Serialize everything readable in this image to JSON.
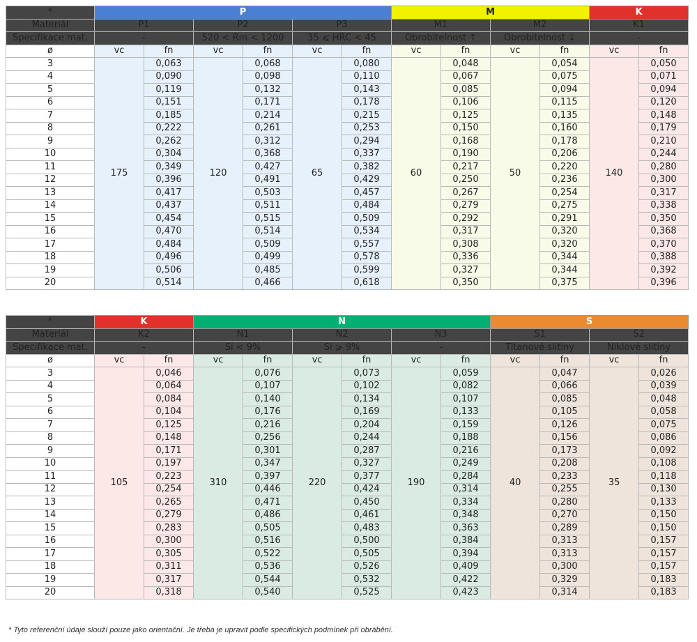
{
  "labels": {
    "star": "*",
    "material": "Materiál",
    "spec": "Specifikace mat.",
    "diameter": "ø",
    "vc": "vc",
    "fn": "fn"
  },
  "diameters": [
    "3",
    "4",
    "5",
    "6",
    "7",
    "8",
    "9",
    "10",
    "11",
    "12",
    "13",
    "14",
    "15",
    "16",
    "17",
    "18",
    "19",
    "20"
  ],
  "tables": [
    {
      "groups": [
        {
          "name": "P",
          "span": 3,
          "color": "#4a7fd4",
          "text_color": "#ffffff",
          "bg": "#e7f1fc"
        },
        {
          "name": "M",
          "span": 2,
          "color": "#f2f200",
          "text_color": "#222222",
          "bg": "#f8fbe7"
        },
        {
          "name": "K",
          "span": 1,
          "color": "#e2302d",
          "text_color": "#ffffff",
          "bg": "#fce8e7"
        }
      ],
      "materials": [
        {
          "name": "P1",
          "spec": "-",
          "vc": "175",
          "fn": [
            "0,063",
            "0,090",
            "0,119",
            "0,151",
            "0,185",
            "0,222",
            "0,262",
            "0,304",
            "0,349",
            "0,396",
            "0,417",
            "0,437",
            "0,454",
            "0,470",
            "0,484",
            "0,496",
            "0,506",
            "0,514"
          ]
        },
        {
          "name": "P2",
          "spec": "520 < Rm < 1200",
          "vc": "120",
          "fn": [
            "0,068",
            "0,098",
            "0,132",
            "0,171",
            "0,214",
            "0,261",
            "0,312",
            "0,368",
            "0,427",
            "0,491",
            "0,503",
            "0,511",
            "0,515",
            "0,514",
            "0,509",
            "0,499",
            "0,485",
            "0,466"
          ]
        },
        {
          "name": "P3",
          "spec": "35 ⩽ HRC < 45",
          "vc": "65",
          "fn": [
            "0,080",
            "0,110",
            "0,143",
            "0,178",
            "0,215",
            "0,253",
            "0,294",
            "0,337",
            "0,382",
            "0,429",
            "0,457",
            "0,484",
            "0,509",
            "0,534",
            "0,557",
            "0,578",
            "0,599",
            "0,618"
          ]
        },
        {
          "name": "M1",
          "spec": "Obrobitelnost ↑",
          "vc": "60",
          "fn": [
            "0,048",
            "0,067",
            "0,085",
            "0,106",
            "0,125",
            "0,150",
            "0,168",
            "0,190",
            "0,217",
            "0,250",
            "0,267",
            "0,279",
            "0,292",
            "0,317",
            "0,308",
            "0,336",
            "0,327",
            "0,350"
          ]
        },
        {
          "name": "M2",
          "spec": "Obrobitelnost ↓",
          "vc": "50",
          "fn": [
            "0,054",
            "0,075",
            "0,094",
            "0,115",
            "0,135",
            "0,160",
            "0,178",
            "0,206",
            "0,220",
            "0,236",
            "0,254",
            "0,275",
            "0,291",
            "0,320",
            "0,320",
            "0,344",
            "0,344",
            "0,375"
          ]
        },
        {
          "name": "K1",
          "spec": "-",
          "vc": "140",
          "fn": [
            "0,050",
            "0,071",
            "0,094",
            "0,120",
            "0,148",
            "0,179",
            "0,210",
            "0,244",
            "0,280",
            "0,300",
            "0,317",
            "0,338",
            "0,350",
            "0,368",
            "0,370",
            "0,388",
            "0,392",
            "0,396"
          ]
        }
      ]
    },
    {
      "groups": [
        {
          "name": "K",
          "span": 1,
          "color": "#e2302d",
          "text_color": "#ffffff",
          "bg": "#fce8e7"
        },
        {
          "name": "N",
          "span": 3,
          "color": "#00b073",
          "text_color": "#ffffff",
          "bg": "#d9ebe2"
        },
        {
          "name": "S",
          "span": 2,
          "color": "#ea8a32",
          "text_color": "#ffffff",
          "bg": "#eee4db"
        }
      ],
      "materials": [
        {
          "name": "K2",
          "spec": "-",
          "vc": "105",
          "fn": [
            "0,046",
            "0,064",
            "0,084",
            "0,104",
            "0,125",
            "0,148",
            "0,171",
            "0,197",
            "0,223",
            "0,254",
            "0,265",
            "0,279",
            "0,283",
            "0,300",
            "0,305",
            "0,311",
            "0,317",
            "0,318"
          ]
        },
        {
          "name": "N1",
          "spec": "Si < 9%",
          "vc": "310",
          "fn": [
            "0,076",
            "0,107",
            "0,140",
            "0,176",
            "0,216",
            "0,256",
            "0,301",
            "0,347",
            "0,397",
            "0,446",
            "0,471",
            "0,486",
            "0,505",
            "0,516",
            "0,522",
            "0,536",
            "0,544",
            "0,540"
          ]
        },
        {
          "name": "N2",
          "spec": "Si ⩾ 9%",
          "vc": "220",
          "fn": [
            "0,073",
            "0,102",
            "0,134",
            "0,169",
            "0,204",
            "0,244",
            "0,287",
            "0,327",
            "0,377",
            "0,424",
            "0,450",
            "0,461",
            "0,483",
            "0,500",
            "0,505",
            "0,526",
            "0,532",
            "0,525"
          ]
        },
        {
          "name": "N3",
          "spec": "-",
          "vc": "190",
          "fn": [
            "0,059",
            "0,082",
            "0,107",
            "0,133",
            "0,159",
            "0,188",
            "0,216",
            "0,249",
            "0,284",
            "0,314",
            "0,334",
            "0,348",
            "0,363",
            "0,384",
            "0,394",
            "0,409",
            "0,422",
            "0,423"
          ]
        },
        {
          "name": "S1",
          "spec": "Titanové slitiny",
          "vc": "40",
          "fn": [
            "0,047",
            "0,066",
            "0,085",
            "0,105",
            "0,126",
            "0,156",
            "0,173",
            "0,208",
            "0,233",
            "0,255",
            "0,280",
            "0,270",
            "0,289",
            "0,313",
            "0,313",
            "0,300",
            "0,329",
            "0,314"
          ]
        },
        {
          "name": "S2",
          "spec": "Niklové slitiny",
          "vc": "35",
          "fn": [
            "0,026",
            "0,039",
            "0,048",
            "0,058",
            "0,075",
            "0,086",
            "0,092",
            "0,108",
            "0,118",
            "0,130",
            "0,133",
            "0,150",
            "0,150",
            "0,157",
            "0,157",
            "0,157",
            "0,183",
            "0,183"
          ]
        }
      ]
    }
  ],
  "footnote": "* Tyto referenční údaje slouží pouze jako orientační. Je třeba je upravit podle specifických podmínek při obrábění."
}
